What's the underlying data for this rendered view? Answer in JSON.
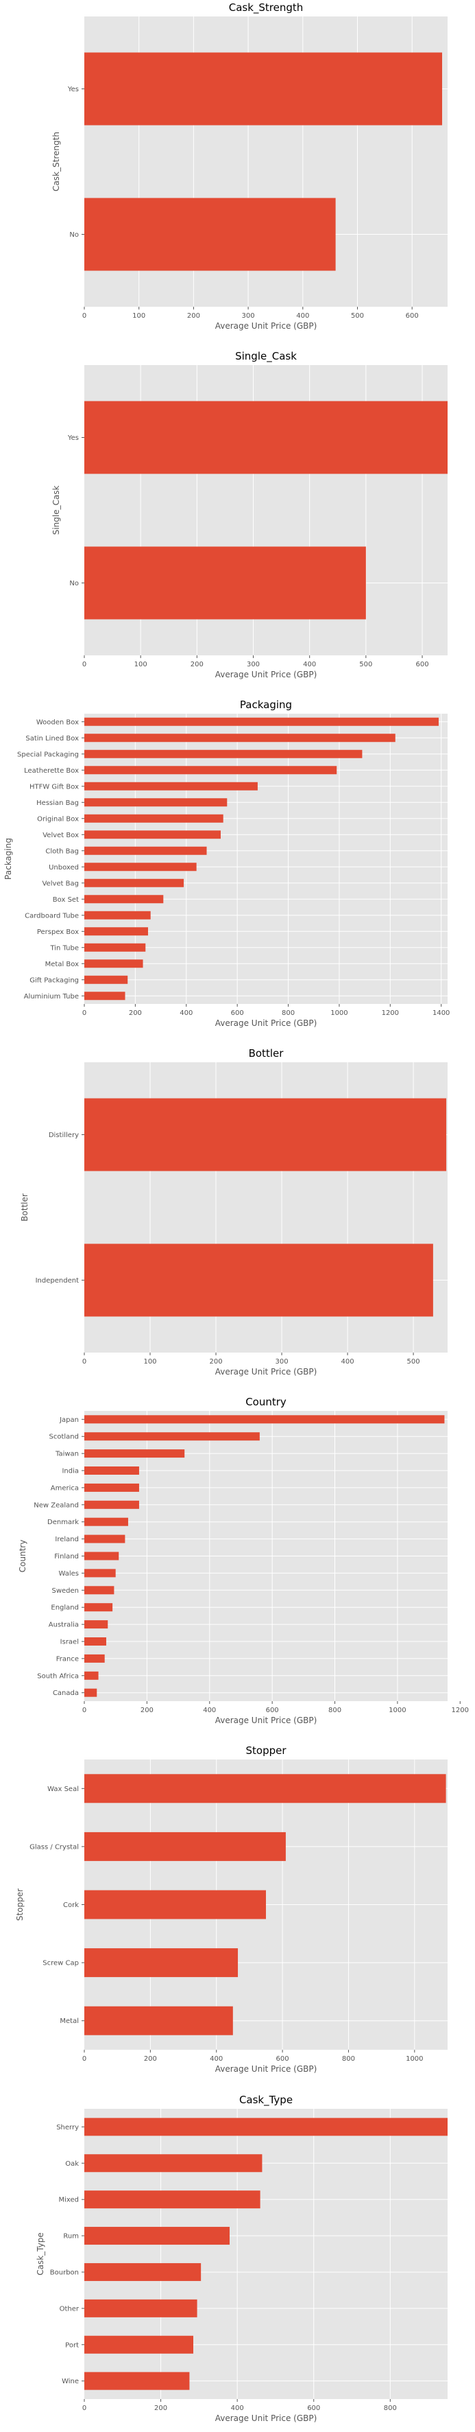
{
  "figure": {
    "background": "#ffffff",
    "plot_background": "#e5e5e5",
    "grid_color": "#ffffff",
    "bar_color": "#e24a33",
    "text_color": "#555555"
  },
  "chart_data": [
    {
      "type": "bar",
      "orientation": "horizontal",
      "title": "Cask_Strength",
      "xlabel": "Average Unit Price (GBP)",
      "ylabel": "Cask_Strength",
      "categories": [
        "Yes",
        "No"
      ],
      "values": [
        655,
        460
      ],
      "xlim": [
        0,
        665
      ],
      "xticks": [
        0,
        100,
        200,
        300,
        400,
        500,
        600
      ],
      "grid": true,
      "legend": "none"
    },
    {
      "type": "bar",
      "orientation": "horizontal",
      "title": "Single_Cask",
      "xlabel": "Average Unit Price (GBP)",
      "ylabel": "Single_Cask",
      "categories": [
        "Yes",
        "No"
      ],
      "values": [
        645,
        500
      ],
      "xlim": [
        0,
        645
      ],
      "xticks": [
        0,
        100,
        200,
        300,
        400,
        500,
        600
      ],
      "grid": true,
      "legend": "none"
    },
    {
      "type": "bar",
      "orientation": "horizontal",
      "title": "Packaging",
      "xlabel": "Average Unit Price (GBP)",
      "ylabel": "Packaging",
      "categories": [
        "Wooden Box",
        "Satin Lined Box",
        "Special Packaging",
        "Leatherette Box",
        "HTFW Gift Box",
        "Hessian Bag",
        "Original Box",
        "Velvet Box",
        "Cloth Bag",
        "Unboxed",
        "Velvet Bag",
        "Box Set",
        "Cardboard Tube",
        "Perspex Box",
        "Tin Tube",
        "Metal Box",
        "Gift Packaging",
        "Aluminium Tube"
      ],
      "values": [
        1390,
        1220,
        1090,
        990,
        680,
        560,
        545,
        535,
        480,
        440,
        390,
        310,
        260,
        250,
        240,
        230,
        170,
        160
      ],
      "xlim": [
        0,
        1425
      ],
      "xticks": [
        0,
        200,
        400,
        600,
        800,
        1000,
        1200,
        1400
      ],
      "grid": true,
      "legend": "none"
    },
    {
      "type": "bar",
      "orientation": "horizontal",
      "title": "Bottler",
      "xlabel": "Average Unit Price (GBP)",
      "ylabel": "Bottler",
      "categories": [
        "Distillery",
        "Independent"
      ],
      "values": [
        550,
        530
      ],
      "xlim": [
        0,
        552
      ],
      "xticks": [
        0,
        100,
        200,
        300,
        400,
        500
      ],
      "grid": true,
      "legend": "none"
    },
    {
      "type": "bar",
      "orientation": "horizontal",
      "title": "Country",
      "xlabel": "Average Unit Price (GBP)",
      "ylabel": "Country",
      "categories": [
        "Japan",
        "Scotland",
        "Taiwan",
        "India",
        "America",
        "New Zealand",
        "Denmark",
        "Ireland",
        "Finland",
        "Wales",
        "Sweden",
        "England",
        "Australia",
        "Israel",
        "France",
        "South Africa",
        "Canada"
      ],
      "values": [
        1150,
        560,
        320,
        175,
        175,
        175,
        140,
        130,
        110,
        100,
        95,
        90,
        75,
        70,
        65,
        45,
        40
      ],
      "xlim": [
        0,
        1160
      ],
      "xticks": [
        0,
        200,
        400,
        600,
        800,
        1000,
        1200
      ],
      "grid": true,
      "legend": "none"
    },
    {
      "type": "bar",
      "orientation": "horizontal",
      "title": "Stopper",
      "xlabel": "Average Unit Price (GBP)",
      "ylabel": "Stopper",
      "categories": [
        "Wax Seal",
        "Glass / Crystal",
        "Cork",
        "Screw Cap",
        "Metal"
      ],
      "values": [
        1095,
        610,
        550,
        465,
        450
      ],
      "xlim": [
        0,
        1100
      ],
      "xticks": [
        0,
        200,
        400,
        600,
        800,
        1000
      ],
      "grid": true,
      "legend": "none"
    },
    {
      "type": "bar",
      "orientation": "horizontal",
      "title": "Cask_Type",
      "xlabel": "Average Unit Price (GBP)",
      "ylabel": "Cask_Type",
      "categories": [
        "Sherry",
        "Oak",
        "Mixed",
        "Rum",
        "Bourbon",
        "Other",
        "Port",
        "Wine"
      ],
      "values": [
        950,
        465,
        460,
        380,
        305,
        295,
        285,
        275
      ],
      "xlim": [
        0,
        950
      ],
      "xticks": [
        0,
        200,
        400,
        600,
        800
      ],
      "grid": true,
      "legend": "none"
    }
  ]
}
